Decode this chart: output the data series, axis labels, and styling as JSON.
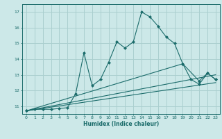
{
  "xlabel": "Humidex (Indice chaleur)",
  "background_color": "#cce8e8",
  "grid_color": "#aacfcf",
  "line_color": "#1a6b6a",
  "xlim": [
    -0.5,
    23.5
  ],
  "ylim": [
    10.5,
    17.5
  ],
  "yticks": [
    11,
    12,
    13,
    14,
    15,
    16,
    17
  ],
  "xticks": [
    0,
    1,
    2,
    3,
    4,
    5,
    6,
    7,
    8,
    9,
    10,
    11,
    12,
    13,
    14,
    15,
    16,
    17,
    18,
    19,
    20,
    21,
    22,
    23
  ],
  "series1_x": [
    0,
    1,
    2,
    3,
    4,
    5,
    6,
    7,
    8,
    9,
    10,
    11,
    12,
    13,
    14,
    15,
    16,
    17,
    18,
    19,
    20,
    21,
    22,
    23
  ],
  "series1_y": [
    10.7,
    10.8,
    10.8,
    10.8,
    10.85,
    10.9,
    11.8,
    14.4,
    12.3,
    12.7,
    13.8,
    15.1,
    14.7,
    15.1,
    17.0,
    16.7,
    16.1,
    15.4,
    15.0,
    13.7,
    12.7,
    12.4,
    13.1,
    12.7
  ],
  "series2_x": [
    0,
    19,
    21,
    22,
    23
  ],
  "series2_y": [
    10.7,
    13.7,
    12.6,
    13.1,
    12.7
  ],
  "series3_x": [
    0,
    23
  ],
  "series3_y": [
    10.7,
    13.0
  ],
  "series4_x": [
    0,
    23
  ],
  "series4_y": [
    10.7,
    12.5
  ]
}
